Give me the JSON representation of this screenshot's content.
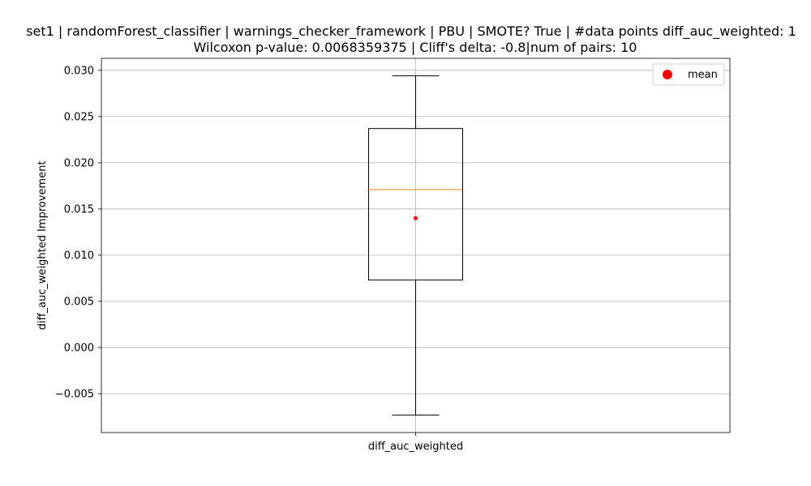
{
  "chart_data": {
    "type": "box",
    "title_line1": "set1 | randomForest_classifier | warnings_checker_framework | PBU | SMOTE? True | #data points diff_auc_weighted: 1",
    "title_line2": "Wilcoxon p-value: 0.0068359375 | Cliff's delta: -0.8|num of pairs: 10",
    "xlabel": "",
    "ylabel": "diff_auc_weighted Improvement",
    "categories": [
      "diff_auc_weighted"
    ],
    "ylim": [
      -0.0092,
      0.0313
    ],
    "yticks": [
      -0.005,
      0.0,
      0.005,
      0.01,
      0.015,
      0.02,
      0.025,
      0.03
    ],
    "ytick_labels": [
      "−0.005",
      "0.000",
      "0.005",
      "0.010",
      "0.015",
      "0.020",
      "0.025",
      "0.030"
    ],
    "grid": true,
    "legend": {
      "placement": "top-right",
      "entries": [
        {
          "label": "mean",
          "color": "#ff0000",
          "marker": "circle"
        }
      ]
    },
    "series": [
      {
        "whisker_low": -0.0073,
        "q1": 0.0073,
        "median": 0.0171,
        "q3": 0.0237,
        "whisker_high": 0.0294,
        "mean": 0.014
      }
    ],
    "colors": {
      "box": "#000000",
      "median": "#ff7f0e",
      "mean": "#ff0000",
      "grid": "#b0b0b0"
    }
  }
}
